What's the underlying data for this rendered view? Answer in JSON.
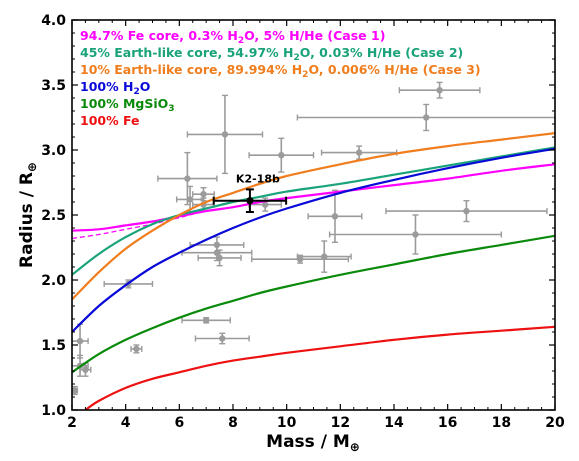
{
  "chart_data": {
    "type": "scatter",
    "title": "",
    "xlabel": "Mass / M",
    "xlabel_sub": "⊕",
    "ylabel": "Radius / R",
    "ylabel_sub": "⊕",
    "xlim": [
      2,
      20
    ],
    "ylim": [
      1.0,
      4.0
    ],
    "xticks": [
      2,
      4,
      6,
      8,
      10,
      12,
      14,
      16,
      18,
      20
    ],
    "yticks": [
      1.0,
      1.5,
      2.0,
      2.5,
      3.0,
      3.5,
      4.0
    ],
    "ytick_labels": [
      "1.0",
      "1.5",
      "2.0",
      "2.5",
      "3.0",
      "3.5",
      "4.0"
    ],
    "legend_position": "top-left",
    "legend": [
      {
        "pre": "94.7% Fe core, 0.3% H",
        "sub1": "2",
        "mid": "O, 5% H/He (Case 1)",
        "color": "#ff00ff"
      },
      {
        "pre": "45% Earth-like core, 54.97% H",
        "sub1": "2",
        "mid": "O, 0.03% H/He (Case 2)",
        "color": "#1aa37a"
      },
      {
        "pre": "10% Earth-like core, 89.994% H",
        "sub1": "2",
        "mid": "O, 0.006% H/He (Case 3)",
        "color": "#f07d1e"
      },
      {
        "pre": "100% H",
        "sub1": "2",
        "mid": "O",
        "color": "#0a0ad8"
      },
      {
        "pre": "100% MgSiO",
        "sub1": "3",
        "mid": "",
        "color": "#0a8a0a"
      },
      {
        "pre": "100% Fe",
        "sub1": "",
        "mid": "",
        "color": "#ee1111"
      }
    ],
    "series": [
      {
        "name": "94.7% Fe core, 0.3% H2O, 5% H/He (Case 1)",
        "color": "#ff00ff",
        "x": [
          2,
          3,
          4,
          5,
          6,
          7,
          8,
          9,
          10,
          12,
          14,
          16,
          18,
          20
        ],
        "y": [
          2.38,
          2.39,
          2.42,
          2.45,
          2.49,
          2.53,
          2.56,
          2.6,
          2.63,
          2.68,
          2.73,
          2.78,
          2.84,
          2.89
        ]
      },
      {
        "name": "Case 1 (dashed)",
        "color": "#ff00ff",
        "dashed": true,
        "x": [
          2,
          3,
          4,
          5,
          6,
          7,
          8
        ],
        "y": [
          2.32,
          2.35,
          2.39,
          2.43,
          2.48,
          2.53,
          2.56
        ]
      },
      {
        "name": "45% Earth-like core, 54.97% H2O, 0.03% H/He (Case 2)",
        "color": "#1aa37a",
        "x": [
          2,
          3,
          4,
          5,
          6,
          7,
          8,
          9,
          10,
          12,
          14,
          16,
          18,
          20
        ],
        "y": [
          2.04,
          2.2,
          2.33,
          2.43,
          2.5,
          2.55,
          2.6,
          2.64,
          2.68,
          2.74,
          2.81,
          2.88,
          2.95,
          3.02
        ]
      },
      {
        "name": "10% Earth-like core, 89.994% H2O, 0.006% H/He (Case 3)",
        "color": "#f07d1e",
        "x": [
          2,
          3,
          4,
          5,
          6,
          7,
          8,
          9,
          10,
          12,
          14,
          16,
          18,
          20
        ],
        "y": [
          1.85,
          2.06,
          2.24,
          2.38,
          2.5,
          2.6,
          2.67,
          2.74,
          2.8,
          2.89,
          2.97,
          3.03,
          3.08,
          3.13
        ]
      },
      {
        "name": "100% H2O",
        "color": "#0a0ad8",
        "x": [
          2,
          3,
          4,
          5,
          6,
          7,
          8,
          9,
          10,
          12,
          14,
          16,
          18,
          20
        ],
        "y": [
          1.6,
          1.8,
          1.96,
          2.1,
          2.21,
          2.31,
          2.4,
          2.48,
          2.55,
          2.67,
          2.77,
          2.86,
          2.94,
          3.01
        ]
      },
      {
        "name": "100% MgSiO3",
        "color": "#0a8a0a",
        "x": [
          2,
          3,
          4,
          5,
          6,
          7,
          8,
          9,
          10,
          12,
          14,
          16,
          18,
          20
        ],
        "y": [
          1.29,
          1.43,
          1.54,
          1.63,
          1.71,
          1.78,
          1.84,
          1.9,
          1.95,
          2.04,
          2.12,
          2.2,
          2.27,
          2.34
        ]
      },
      {
        "name": "100% Fe",
        "color": "#ee1111",
        "x": [
          2.5,
          3,
          4,
          5,
          6,
          7,
          8,
          9,
          10,
          12,
          14,
          16,
          18,
          20
        ],
        "y": [
          1.0,
          1.07,
          1.17,
          1.24,
          1.29,
          1.34,
          1.38,
          1.41,
          1.44,
          1.49,
          1.54,
          1.58,
          1.61,
          1.64
        ]
      }
    ],
    "points": [
      {
        "x": 7.7,
        "y": 3.12,
        "xerr": 1.4,
        "yerr": 0.3
      },
      {
        "x": 9.8,
        "y": 2.96,
        "xerr": 1.2,
        "yerr": 0.13
      },
      {
        "x": 12.7,
        "y": 2.98,
        "xerr": 1.4,
        "yerr": 0.05
      },
      {
        "x": 15.7,
        "y": 3.46,
        "xerr": 1.5,
        "yerr": 0.06
      },
      {
        "x": 15.2,
        "y": 3.25,
        "xerr": 4.8,
        "yerr": 0.1
      },
      {
        "x": 6.3,
        "y": 2.78,
        "xerr": 1.1,
        "yerr": 0.2
      },
      {
        "x": 6.9,
        "y": 2.66,
        "xerr": 0.4,
        "yerr": 0.05
      },
      {
        "x": 6.4,
        "y": 2.62,
        "xerr": 0.5,
        "yerr": 0.1
      },
      {
        "x": 6.9,
        "y": 2.58,
        "xerr": 0.4,
        "yerr": 0.05
      },
      {
        "x": 9.2,
        "y": 2.58,
        "xerr": 0.6,
        "yerr": 0.05
      },
      {
        "x": 11.8,
        "y": 2.49,
        "xerr": 1.0,
        "yerr": 0.2
      },
      {
        "x": 16.7,
        "y": 2.53,
        "xerr": 3.0,
        "yerr": 0.08
      },
      {
        "x": 14.8,
        "y": 2.35,
        "xerr": 3.2,
        "yerr": 0.15
      },
      {
        "x": 7.4,
        "y": 2.27,
        "xerr": 1.0,
        "yerr": 0.06
      },
      {
        "x": 7.4,
        "y": 2.21,
        "xerr": 1.3,
        "yerr": 0.06
      },
      {
        "x": 7.5,
        "y": 2.17,
        "xerr": 0.8,
        "yerr": 0.06
      },
      {
        "x": 10.5,
        "y": 2.16,
        "xerr": 1.8,
        "yerr": 0.03
      },
      {
        "x": 11.4,
        "y": 2.18,
        "xerr": 1.0,
        "yerr": 0.12
      },
      {
        "x": 4.1,
        "y": 1.97,
        "xerr": 0.9,
        "yerr": 0.03
      },
      {
        "x": 7.0,
        "y": 1.69,
        "xerr": 0.9,
        "yerr": 0.02
      },
      {
        "x": 7.6,
        "y": 1.55,
        "xerr": 1.0,
        "yerr": 0.04
      },
      {
        "x": 4.4,
        "y": 1.47,
        "xerr": 0.2,
        "yerr": 0.03
      },
      {
        "x": 2.3,
        "y": 1.53,
        "xerr": 0.3,
        "yerr": 0.13
      },
      {
        "x": 2.3,
        "y": 1.34,
        "xerr": 0.3,
        "yerr": 0.08
      },
      {
        "x": 2.5,
        "y": 1.31,
        "xerr": 0.2,
        "yerr": 0.05
      },
      {
        "x": 2.1,
        "y": 1.15,
        "xerr": 0.1,
        "yerr": 0.03
      }
    ],
    "highlight": {
      "label": "K2-18b",
      "x": 8.63,
      "y": 2.61,
      "xerr": 1.35,
      "yerr": 0.087
    }
  }
}
